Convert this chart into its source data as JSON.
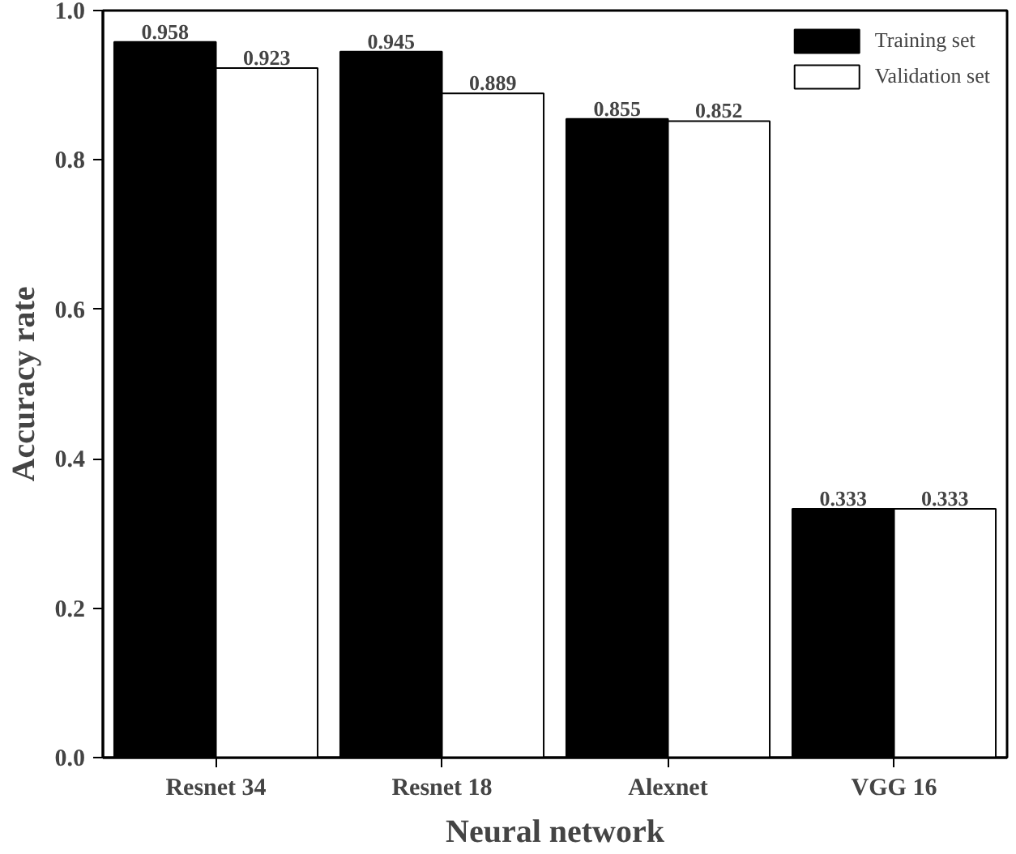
{
  "chart_data": {
    "type": "bar",
    "xlabel": "Neural network",
    "ylabel": "Accuracy rate",
    "categories": [
      "Resnet 34",
      "Resnet 18",
      "Alexnet",
      "VGG 16"
    ],
    "series": [
      {
        "name": "Training set",
        "color": "#000000",
        "values": [
          0.958,
          0.945,
          0.855,
          0.333
        ]
      },
      {
        "name": "Validation set",
        "color": "#ffffff",
        "values": [
          0.923,
          0.889,
          0.852,
          0.333
        ]
      }
    ],
    "ylim": [
      0,
      1.0
    ],
    "yticks": [
      {
        "value": 0,
        "label": "0.0"
      },
      {
        "value": 0.2,
        "label": "0.2"
      },
      {
        "value": 0.4,
        "label": "0.4"
      },
      {
        "value": 0.6,
        "label": "0.6"
      },
      {
        "value": 0.8,
        "label": "0.8"
      },
      {
        "value": 1.0,
        "label": "1.0"
      }
    ],
    "data_labels": true,
    "legend": "top right",
    "grid": false
  }
}
